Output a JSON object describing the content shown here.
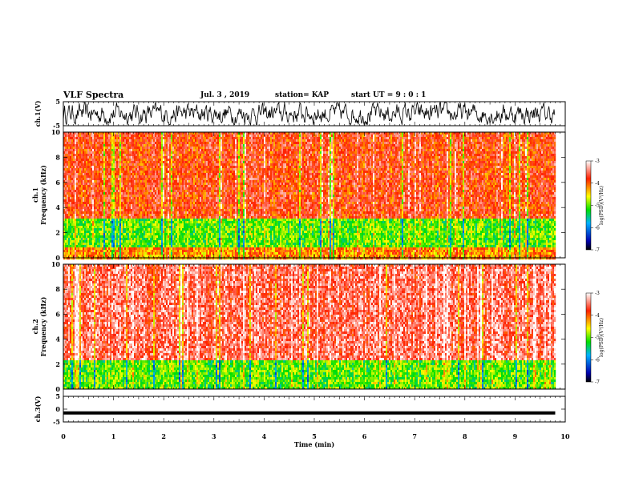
{
  "header": {
    "title": "VLF Spectra",
    "date": "Jul. 3 , 2019",
    "station": "station= KAP",
    "start": "start UT = 9 : 0 : 1"
  },
  "colors": {
    "spectrum_low": "#0000a0",
    "spectrum_mid": "#00e000",
    "spectrum_high": "#ff2000",
    "waveform": "#000000"
  },
  "chart_data": [
    {
      "type": "line",
      "name": "ch1-waveform",
      "ylabel": "ch.1(V)",
      "ylim": [
        -5,
        5
      ],
      "yticks": [
        "5",
        "-5"
      ],
      "x_range_min": [
        0,
        9.8
      ],
      "description_values": {
        "mean": 0,
        "amplitude_approx": 3
      }
    },
    {
      "type": "heatmap",
      "name": "ch1-spectrogram",
      "ylabel": [
        "ch.1",
        "Frequency (kHz)"
      ],
      "ylim": [
        0,
        10
      ],
      "yticks": [
        "0",
        "2",
        "4",
        "6",
        "8",
        "10"
      ],
      "x_range_min": [
        0,
        9.8
      ],
      "colorbar": {
        "label": "log(PSD)(V²/Hz)",
        "range": [
          -7,
          -3
        ],
        "ticks": [
          "-3",
          "-4",
          "-5",
          "-6",
          "-7"
        ]
      },
      "bands_khz": [
        {
          "from": 0,
          "to": 1,
          "level": -4.2
        },
        {
          "from": 1,
          "to": 3.3,
          "level": -5.0
        },
        {
          "from": 3.3,
          "to": 10,
          "level": -3.8
        }
      ]
    },
    {
      "type": "heatmap",
      "name": "ch2-spectrogram",
      "ylabel": [
        "ch.2",
        "Frequency (kHz)"
      ],
      "ylim": [
        0,
        10
      ],
      "yticks": [
        "0",
        "2",
        "4",
        "6",
        "8",
        "10"
      ],
      "x_range_min": [
        0,
        9.8
      ],
      "colorbar": {
        "label": "log(PSD)(V²/Hz)",
        "range": [
          -7,
          -3
        ],
        "ticks": [
          "-3",
          "-4",
          "-5",
          "-6",
          "-7"
        ]
      },
      "bands_khz": [
        {
          "from": 0,
          "to": 2.5,
          "level": -5.0
        },
        {
          "from": 2.5,
          "to": 10,
          "level": -3.5
        }
      ]
    },
    {
      "type": "line",
      "name": "ch3-waveform",
      "ylabel": "ch.3(V)",
      "ylim": [
        -5,
        5
      ],
      "yticks": [
        "5",
        "0",
        "-5"
      ],
      "x_range_min": [
        0,
        9.8
      ],
      "value": -1.5
    }
  ],
  "xaxis": {
    "label": "Time (min)",
    "ticks": [
      "0",
      "1",
      "2",
      "3",
      "4",
      "5",
      "6",
      "7",
      "8",
      "9",
      "10"
    ],
    "range": [
      0,
      10
    ]
  }
}
